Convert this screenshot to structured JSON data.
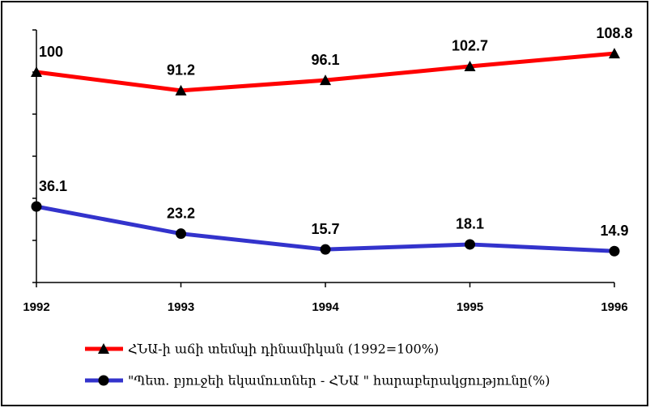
{
  "chart_data": {
    "type": "line",
    "categories": [
      "1992",
      "1993",
      "1994",
      "1995",
      "1996"
    ],
    "ylim": [
      0,
      120
    ],
    "yticks": [
      0,
      20,
      40,
      60,
      80,
      100,
      120
    ],
    "series": [
      {
        "name": "ՀՆԱ-ի աճի տեմպի դինամիկան  (1992=100%)",
        "color": "#ff0000",
        "marker": "triangle",
        "values": [
          100,
          91.2,
          96.1,
          102.7,
          108.8
        ]
      },
      {
        "name": "\"Պետ. բյուջեի եկամուտներ - ՀՆԱ \" հարաբերակցությունը(%)",
        "color": "#3333cc",
        "marker": "circle",
        "values": [
          36.1,
          23.2,
          15.7,
          18.1,
          14.9
        ]
      }
    ]
  }
}
